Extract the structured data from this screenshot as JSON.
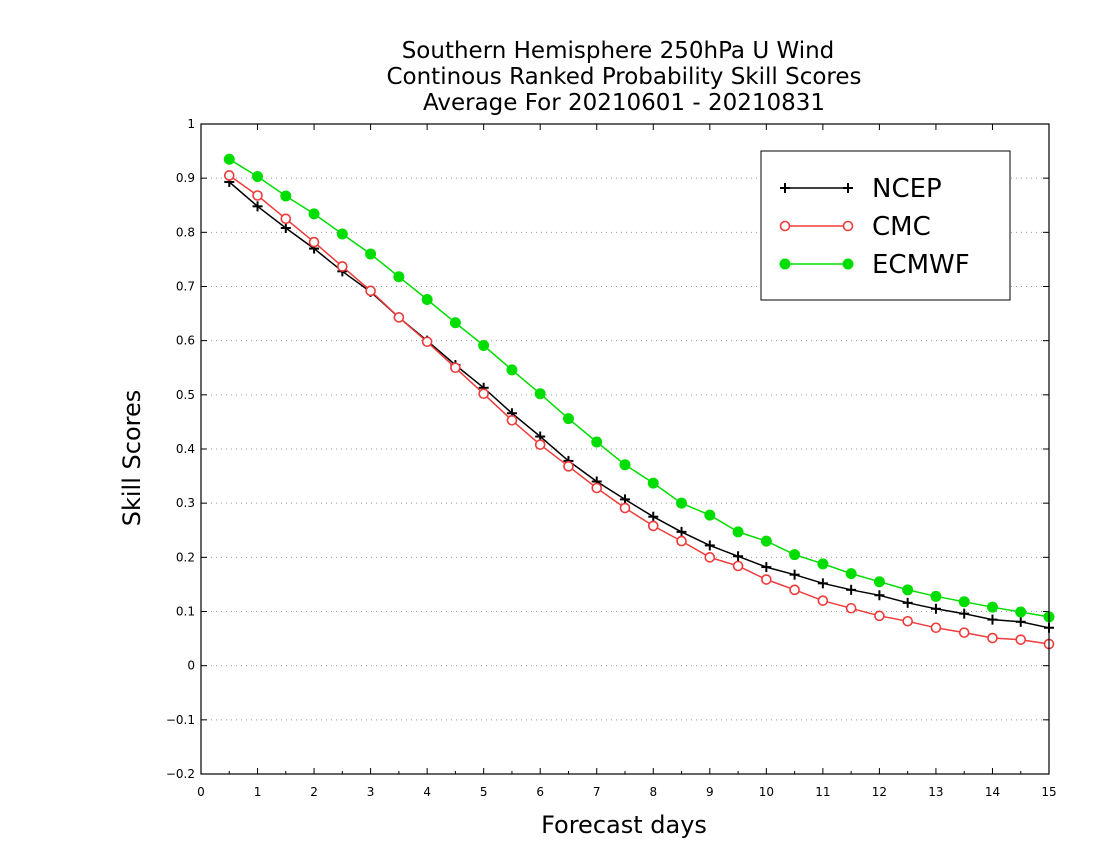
{
  "chart_data": {
    "type": "line",
    "title": [
      "Southern Hemisphere 250hPa U Wind",
      "Continous Ranked Probability Skill Scores",
      "Average For 20210601 - 20210831"
    ],
    "xlabel": "Forecast days",
    "ylabel": "Skill Scores",
    "xlim": [
      0,
      15
    ],
    "ylim": [
      -0.2,
      1
    ],
    "xticks": [
      0,
      1,
      2,
      3,
      4,
      5,
      6,
      7,
      8,
      9,
      10,
      11,
      12,
      13,
      14,
      15
    ],
    "yticks": [
      -0.2,
      -0.1,
      0,
      0.1,
      0.2,
      0.3,
      0.4,
      0.5,
      0.6,
      0.7,
      0.8,
      0.9,
      1
    ],
    "xtick_labels": [
      "0",
      "1",
      "2",
      "3",
      "4",
      "5",
      "6",
      "7",
      "8",
      "9",
      "10",
      "11",
      "12",
      "13",
      "14",
      "15"
    ],
    "ytick_labels": [
      "−0.2",
      "−0.1",
      "0",
      "0.1",
      "0.2",
      "0.3",
      "0.4",
      "0.5",
      "0.6",
      "0.7",
      "0.8",
      "0.9",
      "1"
    ],
    "grid": "horizontal-dotted",
    "legend_position": "top-right",
    "x": [
      0.5,
      1,
      1.5,
      2,
      2.5,
      3,
      3.5,
      4,
      4.5,
      5,
      5.5,
      6,
      6.5,
      7,
      7.5,
      8,
      8.5,
      9,
      9.5,
      10,
      10.5,
      11,
      11.5,
      12,
      12.5,
      13,
      13.5,
      14,
      14.5,
      15
    ],
    "series": [
      {
        "name": "NCEP",
        "color": "#000000",
        "marker": "plus",
        "values": [
          0.893,
          0.848,
          0.808,
          0.77,
          0.728,
          0.69,
          0.643,
          0.6,
          0.555,
          0.513,
          0.466,
          0.423,
          0.378,
          0.34,
          0.307,
          0.275,
          0.247,
          0.222,
          0.202,
          0.182,
          0.168,
          0.152,
          0.14,
          0.13,
          0.116,
          0.105,
          0.096,
          0.085,
          0.081,
          0.07
        ]
      },
      {
        "name": "CMC",
        "color": "#ee3b3b",
        "marker": "open-circle",
        "values": [
          0.905,
          0.868,
          0.825,
          0.782,
          0.737,
          0.692,
          0.643,
          0.598,
          0.55,
          0.502,
          0.453,
          0.408,
          0.368,
          0.328,
          0.291,
          0.258,
          0.23,
          0.2,
          0.184,
          0.159,
          0.14,
          0.12,
          0.106,
          0.092,
          0.082,
          0.07,
          0.061,
          0.051,
          0.048,
          0.04
        ]
      },
      {
        "name": "ECMWF",
        "color": "#00dd00",
        "marker": "filled-circle",
        "values": [
          0.935,
          0.903,
          0.867,
          0.834,
          0.797,
          0.76,
          0.718,
          0.676,
          0.633,
          0.591,
          0.546,
          0.502,
          0.456,
          0.413,
          0.371,
          0.337,
          0.3,
          0.278,
          0.247,
          0.23,
          0.205,
          0.188,
          0.17,
          0.155,
          0.14,
          0.128,
          0.118,
          0.108,
          0.099,
          0.09
        ]
      }
    ]
  }
}
